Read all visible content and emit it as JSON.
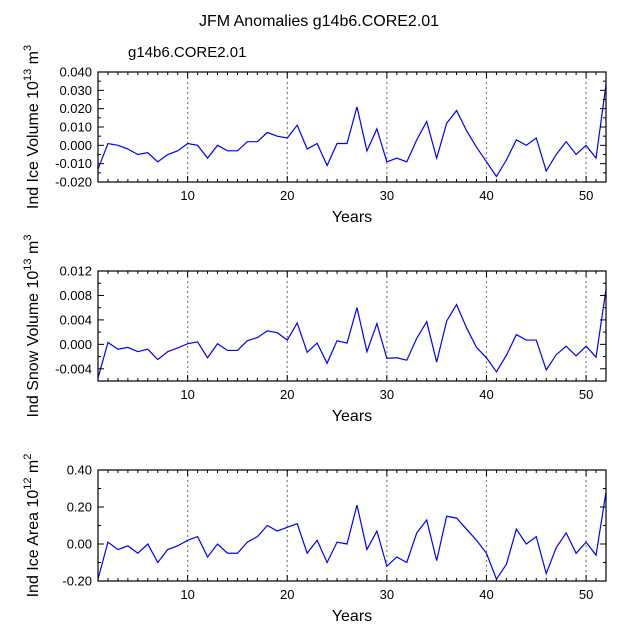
{
  "title": "JFM Anomalies g14b6.CORE2.01",
  "series_label": "g14b6.CORE2.01",
  "colors": {
    "line": "#0000ff",
    "axis": "#000000",
    "grid": "#808080",
    "label": "#0000ff"
  },
  "chart_data": [
    {
      "type": "line",
      "ylabel": "Ind Ice Volume",
      "yunit_base": "10",
      "yunit_exp": "13",
      "yunit_suffix": "m",
      "yunit_suffix_exp": "3",
      "xlabel": "Years",
      "xlim": [
        1,
        52
      ],
      "ylim": [
        -0.02,
        0.04
      ],
      "xticks": [
        10,
        20,
        30,
        40,
        50
      ],
      "yticks": [
        -0.02,
        -0.01,
        0.0,
        0.01,
        0.02,
        0.03,
        0.04
      ],
      "ytick_labels": [
        "-0.020",
        "-0.010",
        "0.000",
        "0.010",
        "0.020",
        "0.030",
        "0.040"
      ],
      "vlines": [
        10,
        20,
        30,
        40,
        50
      ],
      "x": [
        1,
        2,
        3,
        4,
        5,
        6,
        7,
        8,
        9,
        10,
        11,
        12,
        13,
        14,
        15,
        16,
        17,
        18,
        19,
        20,
        21,
        22,
        23,
        24,
        25,
        26,
        27,
        28,
        29,
        30,
        31,
        32,
        33,
        34,
        35,
        36,
        37,
        38,
        39,
        40,
        41,
        42,
        43,
        44,
        45,
        46,
        47,
        48,
        49,
        50,
        51,
        52
      ],
      "values": [
        -0.013,
        0.001,
        0.0,
        -0.002,
        -0.005,
        -0.004,
        -0.009,
        -0.005,
        -0.003,
        0.001,
        0.0,
        -0.007,
        0.0,
        -0.003,
        -0.003,
        0.002,
        0.002,
        0.007,
        0.005,
        0.004,
        0.011,
        -0.002,
        0.001,
        -0.011,
        0.001,
        0.001,
        0.021,
        -0.003,
        0.009,
        -0.009,
        -0.007,
        -0.009,
        0.003,
        0.013,
        -0.007,
        0.012,
        0.019,
        0.008,
        -0.001,
        -0.009,
        -0.017,
        -0.008,
        0.003,
        0.0,
        0.004,
        -0.014,
        -0.005,
        0.002,
        -0.005,
        0.0,
        -0.007,
        0.033
      ]
    },
    {
      "type": "line",
      "ylabel": "Ind Snow Volume",
      "yunit_base": "10",
      "yunit_exp": "13",
      "yunit_suffix": "m",
      "yunit_suffix_exp": "3",
      "xlabel": "Years",
      "xlim": [
        1,
        52
      ],
      "ylim": [
        -0.006,
        0.012
      ],
      "xticks": [
        10,
        20,
        30,
        40,
        50
      ],
      "yticks": [
        -0.004,
        0.0,
        0.004,
        0.008,
        0.012
      ],
      "ytick_labels": [
        "-0.004",
        "0.000",
        "0.004",
        "0.008",
        "0.012"
      ],
      "vlines": [
        10,
        20,
        30,
        40,
        50
      ],
      "x": [
        1,
        2,
        3,
        4,
        5,
        6,
        7,
        8,
        9,
        10,
        11,
        12,
        13,
        14,
        15,
        16,
        17,
        18,
        19,
        20,
        21,
        22,
        23,
        24,
        25,
        26,
        27,
        28,
        29,
        30,
        31,
        32,
        33,
        34,
        35,
        36,
        37,
        38,
        39,
        40,
        41,
        42,
        43,
        44,
        45,
        46,
        47,
        48,
        49,
        50,
        51,
        52
      ],
      "values": [
        -0.0055,
        0.0003,
        -0.0008,
        -0.0005,
        -0.0012,
        -0.0008,
        -0.0025,
        -0.0012,
        -0.0006,
        0.0001,
        0.0004,
        -0.0022,
        0.0001,
        -0.001,
        -0.001,
        0.0006,
        0.0011,
        0.0022,
        0.0019,
        0.0007,
        0.0035,
        -0.0013,
        0.0002,
        -0.0031,
        0.0006,
        0.0002,
        0.006,
        -0.0012,
        0.0034,
        -0.0023,
        -0.0022,
        -0.0026,
        0.001,
        0.0037,
        -0.0029,
        0.0038,
        0.0065,
        0.0027,
        -0.0005,
        -0.0022,
        -0.0045,
        -0.0018,
        0.0016,
        0.0007,
        0.0007,
        -0.0042,
        -0.0017,
        -0.0003,
        -0.0019,
        -0.0003,
        -0.0021,
        0.009
      ]
    },
    {
      "type": "line",
      "ylabel": "Ind Ice Area",
      "yunit_base": "10",
      "yunit_exp": "12",
      "yunit_suffix": "m",
      "yunit_suffix_exp": "2",
      "xlabel": "Years",
      "xlim": [
        1,
        52
      ],
      "ylim": [
        -0.2,
        0.4
      ],
      "xticks": [
        10,
        20,
        30,
        40,
        50
      ],
      "yticks": [
        -0.2,
        0.0,
        0.2,
        0.4
      ],
      "ytick_labels": [
        "-0.20",
        "0.00",
        "0.20",
        "0.40"
      ],
      "vlines": [
        10,
        20,
        30,
        40,
        50
      ],
      "x": [
        1,
        2,
        3,
        4,
        5,
        6,
        7,
        8,
        9,
        10,
        11,
        12,
        13,
        14,
        15,
        16,
        17,
        18,
        19,
        20,
        21,
        22,
        23,
        24,
        25,
        26,
        27,
        28,
        29,
        30,
        31,
        32,
        33,
        34,
        35,
        36,
        37,
        38,
        39,
        40,
        41,
        42,
        43,
        44,
        45,
        46,
        47,
        48,
        49,
        50,
        51,
        52
      ],
      "values": [
        -0.19,
        0.01,
        -0.03,
        -0.01,
        -0.05,
        0.0,
        -0.1,
        -0.03,
        -0.01,
        0.02,
        0.04,
        -0.07,
        0.0,
        -0.05,
        -0.05,
        0.01,
        0.04,
        0.1,
        0.07,
        0.09,
        0.11,
        -0.05,
        0.02,
        -0.1,
        0.01,
        0.0,
        0.21,
        -0.03,
        0.07,
        -0.12,
        -0.07,
        -0.1,
        0.06,
        0.13,
        -0.09,
        0.15,
        0.14,
        0.08,
        0.02,
        -0.05,
        -0.19,
        -0.11,
        0.08,
        0.0,
        0.04,
        -0.16,
        -0.02,
        0.06,
        -0.05,
        0.01,
        -0.06,
        0.28
      ]
    }
  ]
}
